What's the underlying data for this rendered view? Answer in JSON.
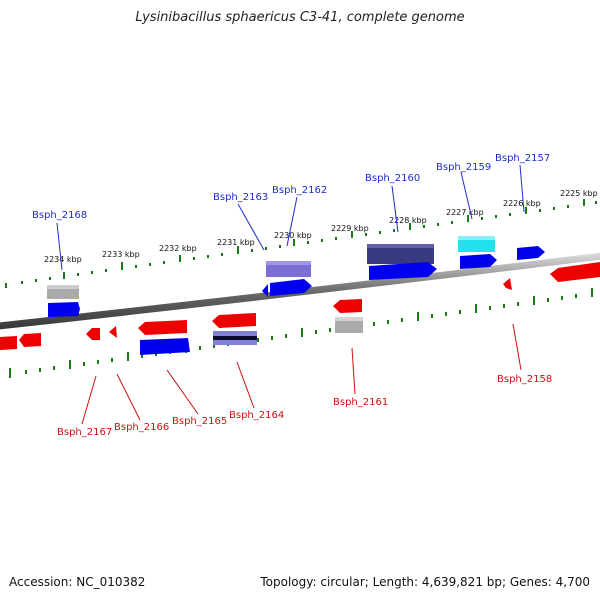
{
  "title": "Lysinibacillus sphaericus C3-41, complete genome",
  "footer": {
    "accession": "Accession: NC_010382",
    "summary": "Topology: circular; Length: 4,639,821 bp; Genes: 4,700"
  },
  "colors": {
    "forward": "#0000ee",
    "reverse": "#ee0000",
    "pseudo": "#aaaaaa",
    "dark": "#3a3a80",
    "medium": "#7b6fd6",
    "cyan": "#22e0ee",
    "tick": "#1a7a1a",
    "label_blue": "#1f2ccf",
    "label_red": "#d01010"
  },
  "scale_ticks": [
    "2234 kbp",
    "2233 kbp",
    "2232 kbp",
    "2231 kbp",
    "2230 kbp",
    "2229 kbp",
    "2228 kbp",
    "2227 kbp",
    "2226 kbp",
    "2225 kbp"
  ],
  "genes_top": [
    "Bsph_2168",
    "Bsph_2163",
    "Bsph_2162",
    "Bsph_2160",
    "Bsph_2159",
    "Bsph_2157"
  ],
  "genes_bottom": [
    "Bsph_2167",
    "Bsph_2166",
    "Bsph_2165",
    "Bsph_2164",
    "Bsph_2161",
    "Bsph_2158"
  ]
}
